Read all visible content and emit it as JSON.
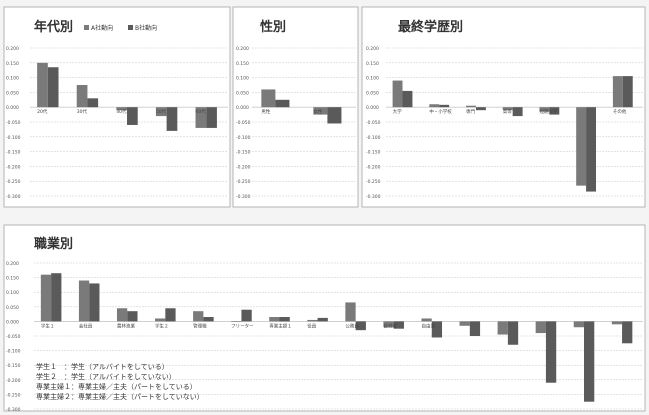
{
  "legend": {
    "a": "A社動向",
    "b": "B社動向"
  },
  "y_ticks_top": [
    "0.200",
    "0.150",
    "0.100",
    "0.050",
    "0.000",
    "-0.050",
    "-0.100",
    "-0.150",
    "-0.200",
    "-0.250",
    "-0.300"
  ],
  "y_ticks_bottom": [
    "0.200",
    "0.150",
    "0.100",
    "0.050",
    "0.000",
    "-0.050",
    "-0.100",
    "-0.150",
    "-0.200",
    "-0.250",
    "-0.300"
  ],
  "notes": [
    "学生１　：学生（アルバイトをしている）",
    "学生２　：学生（アルバイトをしていない）",
    "専業主婦１：専業主婦／主夫（パートをしている）",
    "専業主婦２：専業主婦／主夫（パートをしていない）"
  ],
  "colors": {
    "a": "#7a7a7a",
    "b": "#5a5a5a",
    "grid": "#c9c9c9",
    "frame": "#b5b5b5",
    "panel": "#ffffff"
  },
  "chart_data": [
    {
      "type": "bar",
      "title": "年代別",
      "ylim": [
        -0.3,
        0.2
      ],
      "categories": [
        "20代",
        "30代",
        "40代",
        "50代",
        "60代"
      ],
      "series": [
        {
          "name": "A社動向",
          "values": [
            0.15,
            0.075,
            -0.01,
            -0.03,
            -0.07
          ]
        },
        {
          "name": "B社動向",
          "values": [
            0.135,
            0.03,
            -0.06,
            -0.08,
            -0.07
          ]
        }
      ]
    },
    {
      "type": "bar",
      "title": "性別",
      "ylim": [
        -0.3,
        0.2
      ],
      "categories": [
        "男性",
        "女性"
      ],
      "series": [
        {
          "name": "A社動向",
          "values": [
            0.06,
            -0.025
          ]
        },
        {
          "name": "B社動向",
          "values": [
            0.025,
            -0.055
          ]
        }
      ]
    },
    {
      "type": "bar",
      "title": "最終学歴別",
      "ylim": [
        -0.3,
        0.2
      ],
      "categories": [
        "大学",
        "中・小学校",
        "専門",
        "高等",
        "短期大学",
        "",
        "その他"
      ],
      "series": [
        {
          "name": "A社動向",
          "values": [
            0.09,
            0.01,
            0.005,
            -0.01,
            -0.015,
            -0.265,
            0.105
          ]
        },
        {
          "name": "B社動向",
          "values": [
            0.055,
            0.008,
            -0.01,
            -0.03,
            -0.025,
            -0.285,
            0.105
          ]
        }
      ]
    },
    {
      "type": "bar",
      "title": "職業別",
      "ylim": [
        -0.3,
        0.2
      ],
      "categories": [
        "学生１",
        "会社員",
        "農林漁業",
        "学生２",
        "管理職",
        "フリーター",
        "専業主婦１",
        "役員",
        "公務員",
        "自営業",
        "自由業",
        "",
        "",
        "",
        "",
        ""
      ],
      "series": [
        {
          "name": "A社動向",
          "values": [
            0.16,
            0.14,
            0.045,
            0.01,
            0.035,
            0.0,
            0.015,
            0.005,
            0.065,
            -0.02,
            0.01,
            -0.015,
            -0.045,
            -0.04,
            -0.02,
            -0.01
          ]
        },
        {
          "name": "B社動向",
          "values": [
            0.165,
            0.13,
            0.035,
            0.045,
            0.015,
            0.04,
            0.015,
            0.012,
            -0.03,
            -0.025,
            -0.055,
            -0.05,
            -0.08,
            -0.21,
            -0.275,
            -0.075
          ]
        }
      ]
    }
  ]
}
